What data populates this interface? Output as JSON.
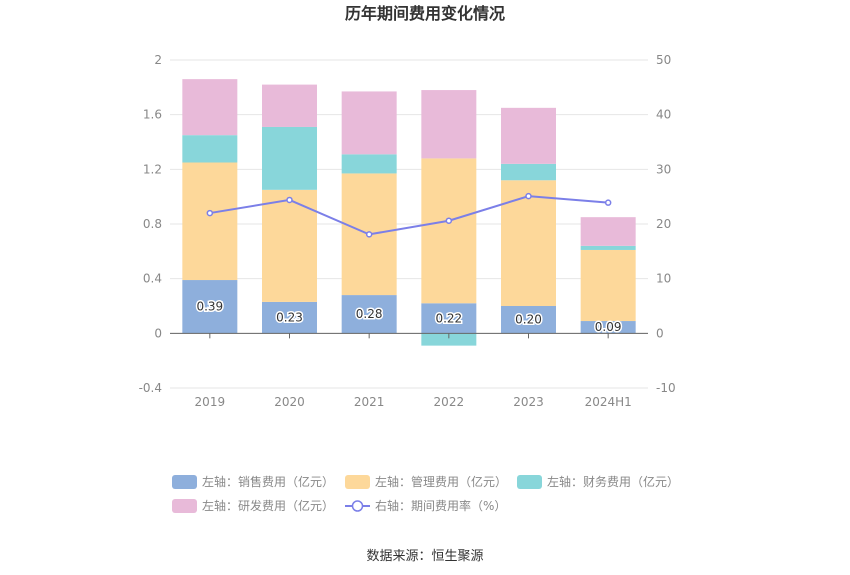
{
  "chart_data": {
    "type": "bar",
    "title": "历年期间费用变化情况",
    "categories": [
      "2019",
      "2020",
      "2021",
      "2022",
      "2023",
      "2024H1"
    ],
    "series": [
      {
        "name": "左轴：销售费用（亿元）",
        "axis": "left",
        "kind": "bar",
        "color": "#8eafdc",
        "values": [
          0.39,
          0.23,
          0.28,
          0.22,
          0.2,
          0.09
        ]
      },
      {
        "name": "左轴：管理费用（亿元）",
        "axis": "left",
        "kind": "bar",
        "color": "#fdd89a",
        "values": [
          0.86,
          0.82,
          0.89,
          1.06,
          0.92,
          0.52
        ]
      },
      {
        "name": "左轴：财务费用（亿元）",
        "axis": "left",
        "kind": "bar",
        "color": "#88d6da",
        "values": [
          0.2,
          0.46,
          0.14,
          -0.09,
          0.12,
          0.03
        ]
      },
      {
        "name": "左轴：研发费用（亿元）",
        "axis": "left",
        "kind": "bar",
        "color": "#e8bad9",
        "values": [
          0.41,
          0.31,
          0.46,
          0.5,
          0.41,
          0.21
        ]
      },
      {
        "name": "右轴：期间费用率（%）",
        "axis": "right",
        "kind": "line",
        "color": "#7b7fe8",
        "values": [
          22.0,
          24.4,
          18.1,
          20.6,
          25.1,
          23.9
        ]
      }
    ],
    "bar_labels": [
      "0.39",
      "0.23",
      "0.28",
      "0.22",
      "0.20",
      "0.09"
    ],
    "left_axis": {
      "min": -0.4,
      "max": 2,
      "ticks": [
        "-0.4",
        "0",
        "0.4",
        "0.8",
        "1.2",
        "1.6",
        "2"
      ]
    },
    "right_axis": {
      "min": -10,
      "max": 50,
      "ticks": [
        "-10",
        "0",
        "10",
        "20",
        "30",
        "40",
        "50"
      ]
    },
    "grid": true,
    "legend_position": "bottom"
  },
  "source": "数据来源：恒生聚源"
}
